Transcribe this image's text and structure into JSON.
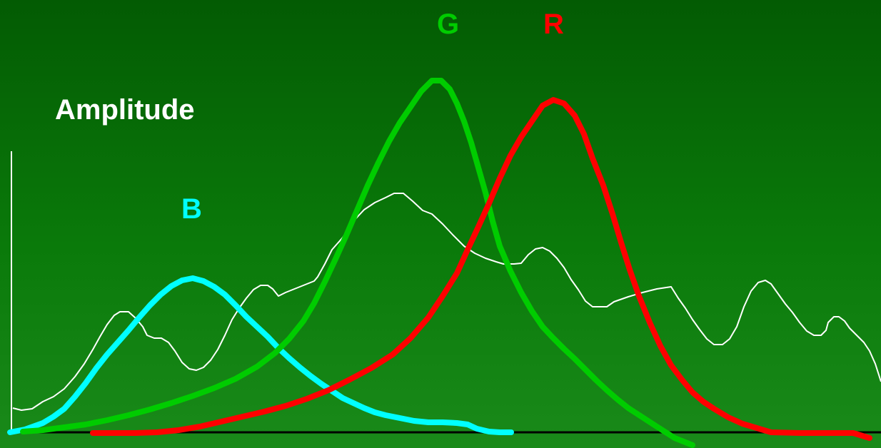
{
  "diagram": {
    "y_axis_label": "Amplitude",
    "curves": [
      {
        "id": "b",
        "label": "B",
        "color": "#00ffff"
      },
      {
        "id": "g",
        "label": "G",
        "color": "#00cc00"
      },
      {
        "id": "r",
        "label": "R",
        "color": "#ff0000"
      }
    ],
    "spectrum_color": "#ffffff",
    "axis_color": "#000000"
  }
}
